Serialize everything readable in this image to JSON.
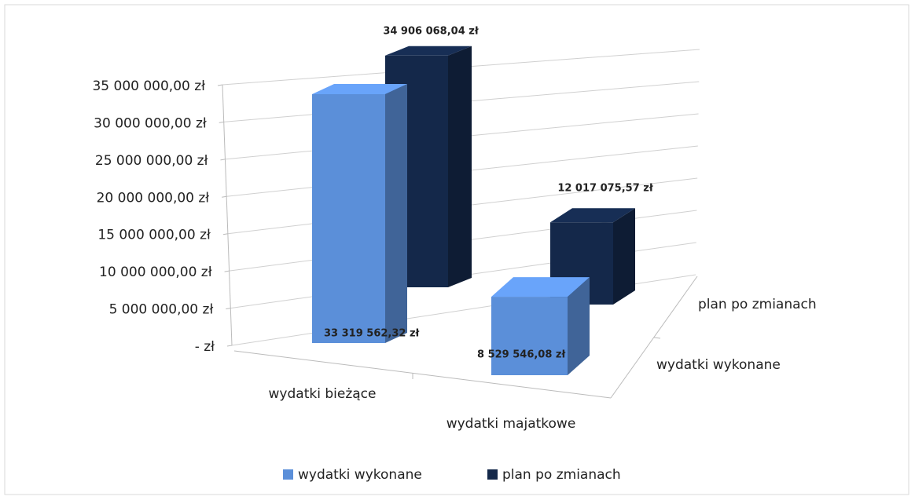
{
  "chart_data": {
    "type": "bar3d",
    "categories": [
      "wydatki bieżące",
      "wydatki majatkowe"
    ],
    "series": [
      {
        "name": "wydatki wykonane",
        "color": "#5b8fd9",
        "values": [
          33319562.32,
          8529546.08
        ],
        "value_labels": [
          "33 319 562,32 zł",
          "8 529 546,08 zł"
        ]
      },
      {
        "name": "plan po zmianach",
        "color": "#14284a",
        "values": [
          34906068.04,
          12017075.57
        ],
        "value_labels": [
          "34 906 068,04 zł",
          "12 017 075,57 zł"
        ]
      }
    ],
    "ylim": [
      0,
      35000000
    ],
    "yticks": [
      {
        "value": 0,
        "label": "-  zł"
      },
      {
        "value": 5000000,
        "label": "5 000 000,00 zł"
      },
      {
        "value": 10000000,
        "label": "10 000 000,00 zł"
      },
      {
        "value": 15000000,
        "label": "15 000 000,00 zł"
      },
      {
        "value": 20000000,
        "label": "20 000 000,00 zł"
      },
      {
        "value": 25000000,
        "label": "25 000 000,00 zł"
      },
      {
        "value": 30000000,
        "label": "30 000 000,00 zł"
      },
      {
        "value": 35000000,
        "label": "35 000 000,00 zł"
      }
    ],
    "grid": true,
    "legend": "bottom"
  }
}
